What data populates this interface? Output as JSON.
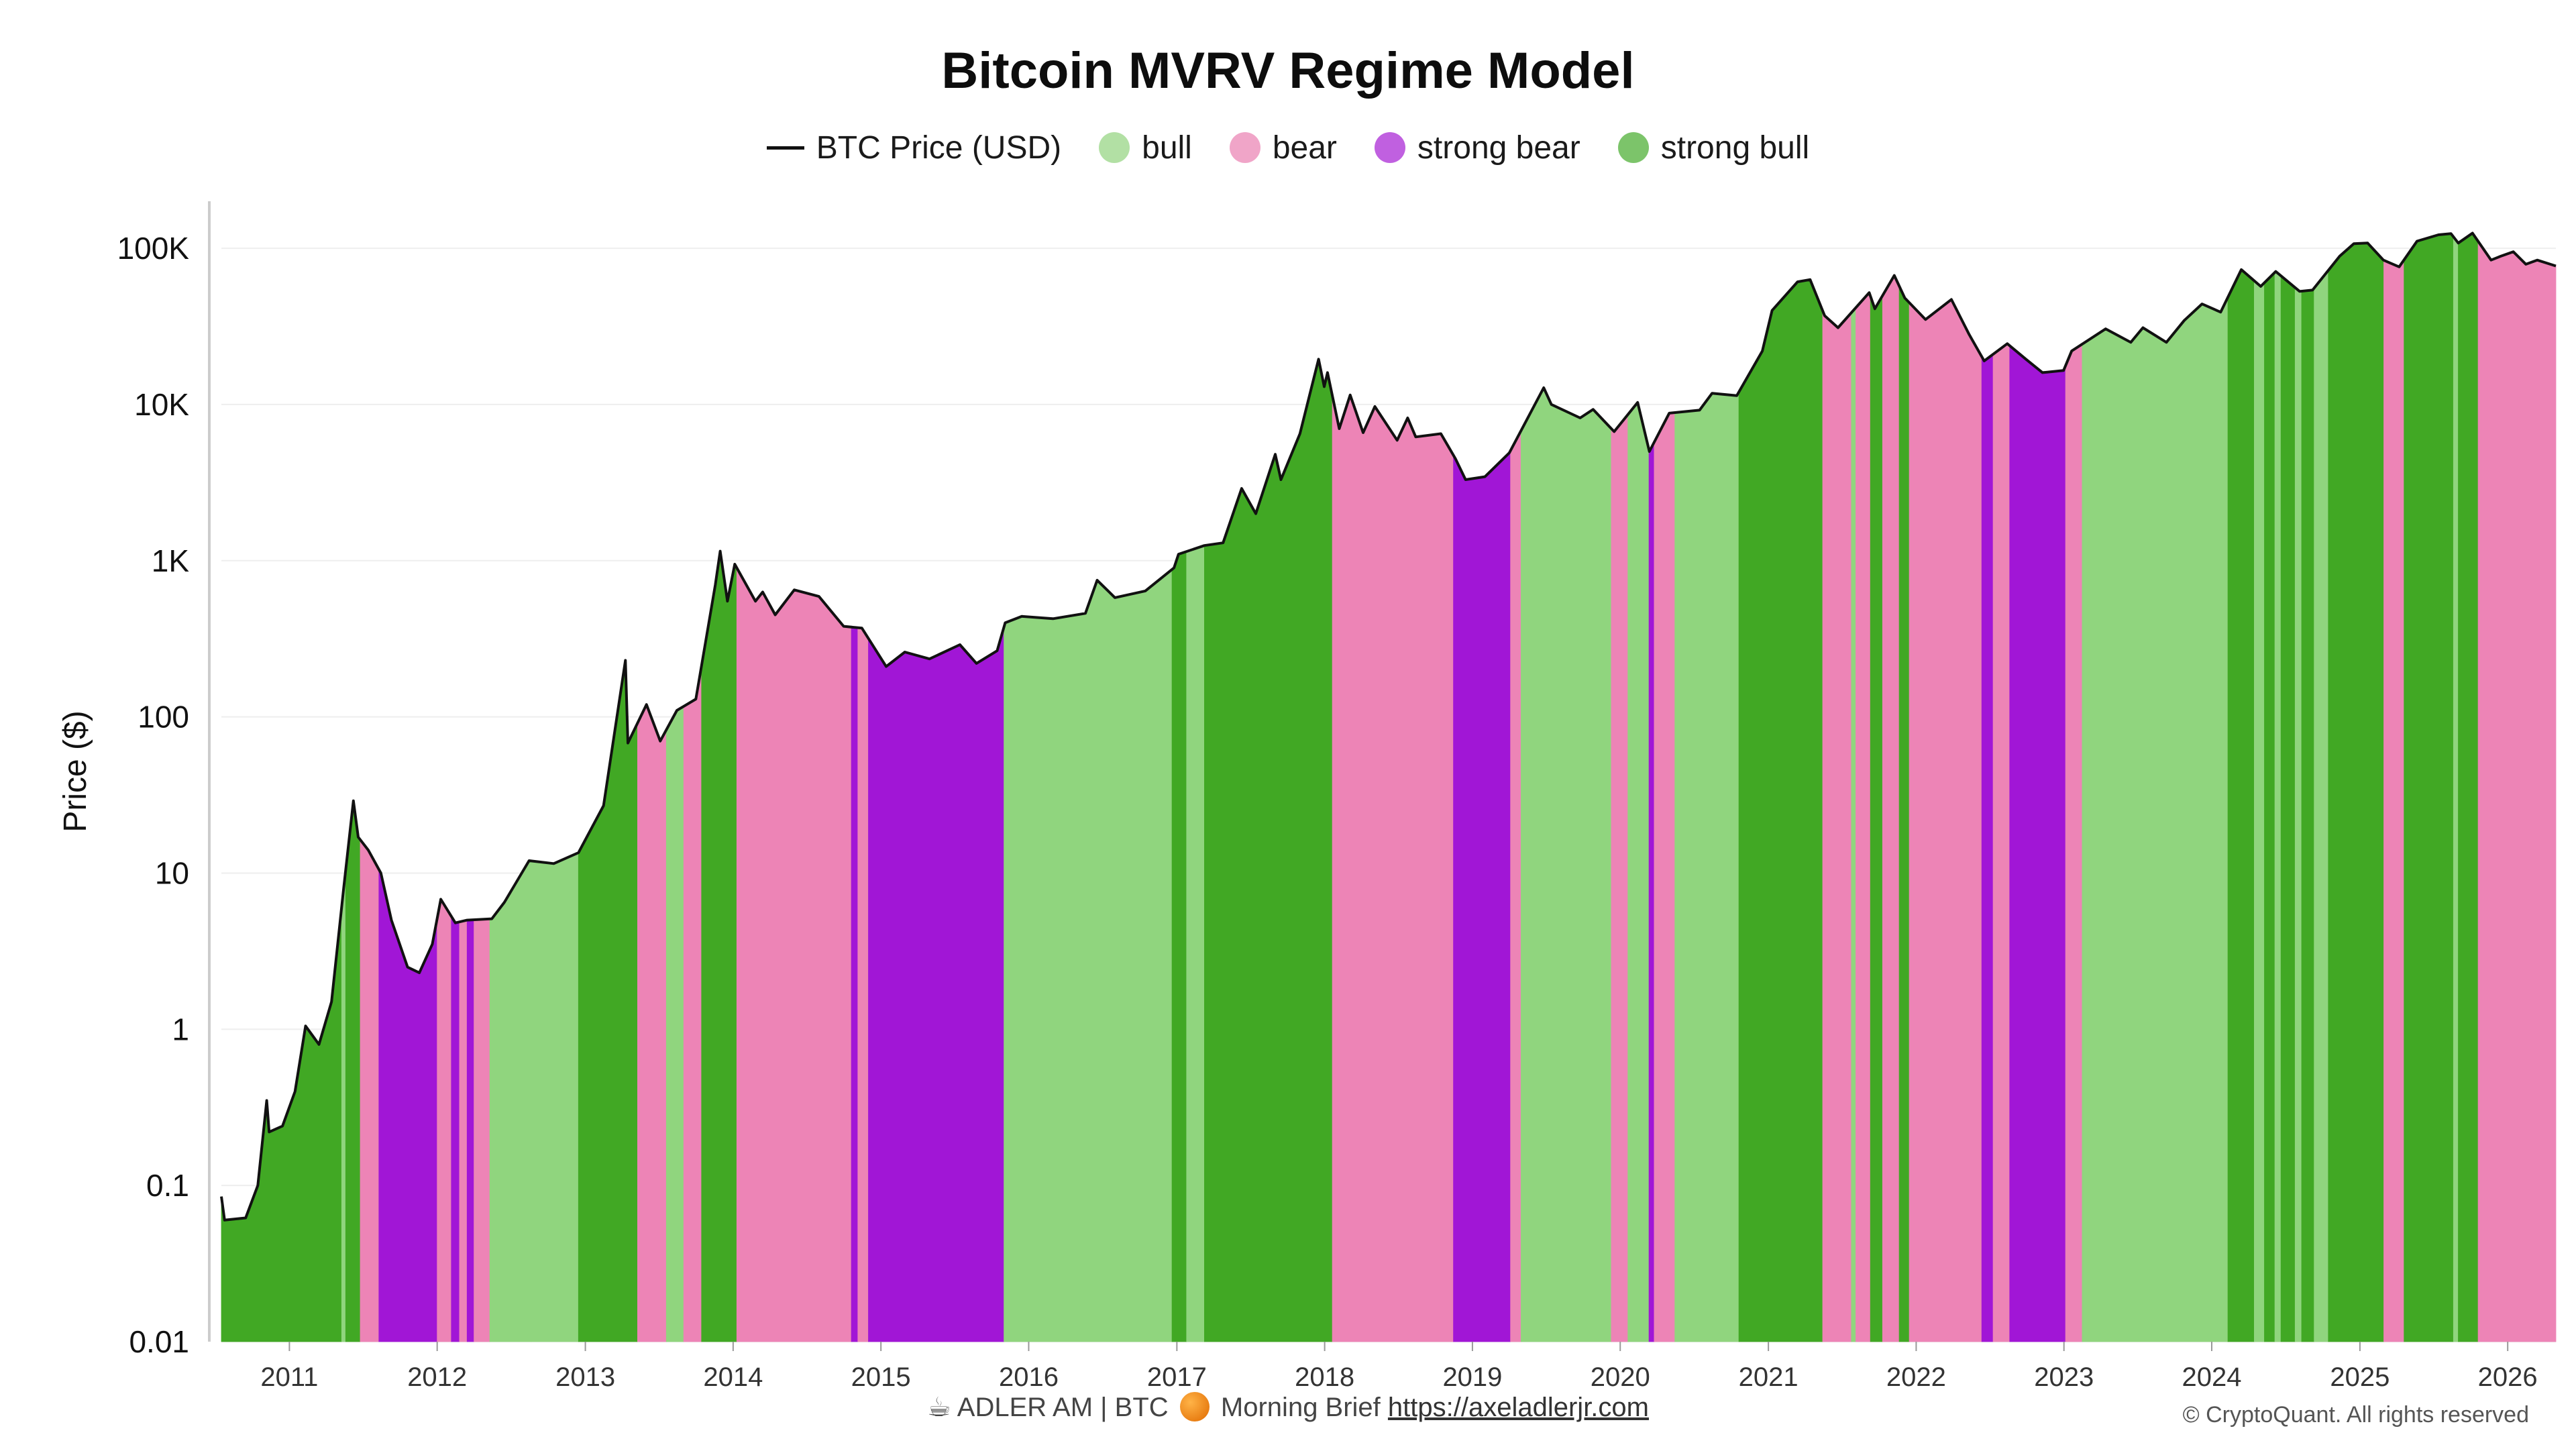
{
  "chart_data": {
    "type": "area",
    "title": "Bitcoin MVRV Regime Model",
    "ylabel": "Price ($)",
    "xlabel": "",
    "y_scale": "log",
    "ylim": [
      0.01,
      200000
    ],
    "xlim": [
      "2010-07-17",
      "2026-04-30"
    ],
    "grid": true,
    "legend_position": "top-center",
    "y_ticks": [
      {
        "value": 0.01,
        "label": "0.01"
      },
      {
        "value": 0.1,
        "label": "0.1"
      },
      {
        "value": 1,
        "label": "1"
      },
      {
        "value": 10,
        "label": "10"
      },
      {
        "value": 100,
        "label": "100"
      },
      {
        "value": 1000,
        "label": "1K"
      },
      {
        "value": 10000,
        "label": "10K"
      },
      {
        "value": 100000,
        "label": "100K"
      }
    ],
    "x_ticks": [
      "2011",
      "2012",
      "2013",
      "2014",
      "2015",
      "2016",
      "2017",
      "2018",
      "2019",
      "2020",
      "2021",
      "2022",
      "2023",
      "2024",
      "2025",
      "2026"
    ],
    "legend": [
      {
        "key": "price",
        "label": "BTC Price (USD)",
        "symbol": "line",
        "color": "#111111"
      },
      {
        "key": "bull",
        "label": "bull",
        "symbol": "dot",
        "color": "#b2e0a4"
      },
      {
        "key": "bear",
        "label": "bear",
        "symbol": "dot",
        "color": "#f0a5c8"
      },
      {
        "key": "strong_bear",
        "label": "strong bear",
        "symbol": "dot",
        "color": "#c060e0"
      },
      {
        "key": "strong_bull",
        "label": "strong bull",
        "symbol": "dot",
        "color": "#7cc46a"
      }
    ],
    "fill_colors": {
      "bull": "#90d57e",
      "bear": "#ed84b6",
      "strong_bear": "#a116d6",
      "strong_bull": "#41a824"
    },
    "price_series": [
      [
        "2010-07-17",
        0.085
      ],
      [
        "2010-07-25",
        0.06
      ],
      [
        "2010-09-15",
        0.062
      ],
      [
        "2010-10-15",
        0.1
      ],
      [
        "2010-11-06",
        0.35
      ],
      [
        "2010-11-12",
        0.22
      ],
      [
        "2010-12-15",
        0.24
      ],
      [
        "2011-01-15",
        0.4
      ],
      [
        "2011-02-10",
        1.05
      ],
      [
        "2011-03-15",
        0.8
      ],
      [
        "2011-04-15",
        1.5
      ],
      [
        "2011-05-15",
        8
      ],
      [
        "2011-06-08",
        29
      ],
      [
        "2011-06-20",
        17
      ],
      [
        "2011-07-15",
        14
      ],
      [
        "2011-08-15",
        10
      ],
      [
        "2011-09-10",
        5
      ],
      [
        "2011-10-20",
        2.5
      ],
      [
        "2011-11-18",
        2.3
      ],
      [
        "2011-12-20",
        3.5
      ],
      [
        "2012-01-10",
        6.8
      ],
      [
        "2012-02-15",
        4.8
      ],
      [
        "2012-03-15",
        5
      ],
      [
        "2012-05-15",
        5.1
      ],
      [
        "2012-06-15",
        6.5
      ],
      [
        "2012-08-15",
        12
      ],
      [
        "2012-10-15",
        11.5
      ],
      [
        "2012-12-15",
        13.5
      ],
      [
        "2013-02-15",
        27
      ],
      [
        "2013-04-10",
        230
      ],
      [
        "2013-04-16",
        68
      ],
      [
        "2013-06-01",
        120
      ],
      [
        "2013-07-05",
        70
      ],
      [
        "2013-08-15",
        110
      ],
      [
        "2013-10-01",
        130
      ],
      [
        "2013-11-18",
        700
      ],
      [
        "2013-11-30",
        1150
      ],
      [
        "2013-12-18",
        550
      ],
      [
        "2014-01-05",
        950
      ],
      [
        "2014-02-25",
        550
      ],
      [
        "2014-03-15",
        630
      ],
      [
        "2014-04-15",
        450
      ],
      [
        "2014-06-01",
        650
      ],
      [
        "2014-08-01",
        590
      ],
      [
        "2014-10-01",
        380
      ],
      [
        "2014-11-15",
        370
      ],
      [
        "2015-01-14",
        210
      ],
      [
        "2015-03-01",
        260
      ],
      [
        "2015-05-01",
        235
      ],
      [
        "2015-07-15",
        290
      ],
      [
        "2015-08-25",
        220
      ],
      [
        "2015-10-15",
        265
      ],
      [
        "2015-11-04",
        400
      ],
      [
        "2015-12-15",
        440
      ],
      [
        "2016-03-01",
        425
      ],
      [
        "2016-05-20",
        460
      ],
      [
        "2016-06-18",
        750
      ],
      [
        "2016-08-01",
        580
      ],
      [
        "2016-10-15",
        640
      ],
      [
        "2016-12-25",
        900
      ],
      [
        "2017-01-05",
        1100
      ],
      [
        "2017-03-10",
        1250
      ],
      [
        "2017-04-25",
        1300
      ],
      [
        "2017-06-10",
        2900
      ],
      [
        "2017-07-15",
        2000
      ],
      [
        "2017-09-01",
        4800
      ],
      [
        "2017-09-15",
        3300
      ],
      [
        "2017-11-01",
        6500
      ],
      [
        "2017-12-17",
        19500
      ],
      [
        "2017-12-31",
        13000
      ],
      [
        "2018-01-08",
        16000
      ],
      [
        "2018-02-06",
        7000
      ],
      [
        "2018-03-05",
        11500
      ],
      [
        "2018-04-06",
        6600
      ],
      [
        "2018-05-05",
        9700
      ],
      [
        "2018-06-29",
        5900
      ],
      [
        "2018-07-25",
        8200
      ],
      [
        "2018-08-14",
        6200
      ],
      [
        "2018-10-15",
        6500
      ],
      [
        "2018-11-20",
        4500
      ],
      [
        "2018-12-15",
        3300
      ],
      [
        "2019-02-01",
        3450
      ],
      [
        "2019-04-02",
        4900
      ],
      [
        "2019-06-26",
        12800
      ],
      [
        "2019-07-15",
        10000
      ],
      [
        "2019-09-24",
        8200
      ],
      [
        "2019-10-26",
        9300
      ],
      [
        "2019-12-17",
        6700
      ],
      [
        "2020-02-13",
        10300
      ],
      [
        "2020-03-13",
        5000
      ],
      [
        "2020-05-01",
        8800
      ],
      [
        "2020-07-15",
        9200
      ],
      [
        "2020-08-15",
        11800
      ],
      [
        "2020-10-15",
        11400
      ],
      [
        "2020-12-17",
        22000
      ],
      [
        "2021-01-10",
        40000
      ],
      [
        "2021-03-14",
        61000
      ],
      [
        "2021-04-14",
        63000
      ],
      [
        "2021-05-20",
        37000
      ],
      [
        "2021-06-22",
        31000
      ],
      [
        "2021-09-07",
        52000
      ],
      [
        "2021-09-21",
        41000
      ],
      [
        "2021-11-08",
        67000
      ],
      [
        "2021-12-04",
        48000
      ],
      [
        "2022-01-24",
        35000
      ],
      [
        "2022-03-29",
        47000
      ],
      [
        "2022-05-12",
        28000
      ],
      [
        "2022-06-18",
        19000
      ],
      [
        "2022-08-14",
        24500
      ],
      [
        "2022-09-30",
        19400
      ],
      [
        "2022-11-09",
        16000
      ],
      [
        "2022-12-31",
        16500
      ],
      [
        "2023-01-20",
        22000
      ],
      [
        "2023-04-14",
        30500
      ],
      [
        "2023-06-15",
        25000
      ],
      [
        "2023-07-15",
        31000
      ],
      [
        "2023-09-11",
        25000
      ],
      [
        "2023-10-25",
        34500
      ],
      [
        "2023-12-08",
        44000
      ],
      [
        "2024-01-23",
        39000
      ],
      [
        "2024-03-14",
        73000
      ],
      [
        "2024-05-01",
        57000
      ],
      [
        "2024-06-07",
        71000
      ],
      [
        "2024-08-05",
        53000
      ],
      [
        "2024-09-06",
        54000
      ],
      [
        "2024-11-12",
        89000
      ],
      [
        "2024-12-17",
        107000
      ],
      [
        "2025-01-20",
        108000
      ],
      [
        "2025-02-28",
        84000
      ],
      [
        "2025-04-08",
        76000
      ],
      [
        "2025-05-22",
        111000
      ],
      [
        "2025-07-14",
        122000
      ],
      [
        "2025-08-14",
        124000
      ],
      [
        "2025-09-01",
        108000
      ],
      [
        "2025-10-06",
        125000
      ],
      [
        "2025-11-21",
        84000
      ],
      [
        "2025-12-15",
        89000
      ],
      [
        "2026-01-15",
        95000
      ],
      [
        "2026-02-15",
        79000
      ],
      [
        "2026-03-15",
        84000
      ],
      [
        "2026-04-30",
        77000
      ]
    ],
    "regimes": [
      {
        "start": "2010-07-17",
        "end": "2011-05-10",
        "regime": "strong_bull"
      },
      {
        "start": "2011-05-10",
        "end": "2011-05-20",
        "regime": "bull"
      },
      {
        "start": "2011-05-20",
        "end": "2011-06-25",
        "regime": "strong_bull"
      },
      {
        "start": "2011-06-25",
        "end": "2011-08-10",
        "regime": "bear"
      },
      {
        "start": "2011-08-10",
        "end": "2012-01-01",
        "regime": "strong_bear"
      },
      {
        "start": "2012-01-01",
        "end": "2012-02-05",
        "regime": "bear"
      },
      {
        "start": "2012-02-05",
        "end": "2012-02-25",
        "regime": "strong_bear"
      },
      {
        "start": "2012-02-25",
        "end": "2012-03-15",
        "regime": "bear"
      },
      {
        "start": "2012-03-15",
        "end": "2012-04-01",
        "regime": "strong_bear"
      },
      {
        "start": "2012-04-01",
        "end": "2012-05-10",
        "regime": "bear"
      },
      {
        "start": "2012-05-10",
        "end": "2012-08-20",
        "regime": "bull"
      },
      {
        "start": "2012-08-20",
        "end": "2012-12-15",
        "regime": "bull"
      },
      {
        "start": "2012-12-15",
        "end": "2013-05-10",
        "regime": "strong_bull"
      },
      {
        "start": "2013-05-10",
        "end": "2013-07-20",
        "regime": "bear"
      },
      {
        "start": "2013-07-20",
        "end": "2013-09-01",
        "regime": "bull"
      },
      {
        "start": "2013-09-01",
        "end": "2013-10-15",
        "regime": "bear"
      },
      {
        "start": "2013-10-15",
        "end": "2014-01-10",
        "regime": "strong_bull"
      },
      {
        "start": "2014-01-10",
        "end": "2014-10-20",
        "regime": "bear"
      },
      {
        "start": "2014-10-20",
        "end": "2014-11-05",
        "regime": "strong_bear"
      },
      {
        "start": "2014-11-05",
        "end": "2014-12-01",
        "regime": "bear"
      },
      {
        "start": "2014-12-01",
        "end": "2015-11-01",
        "regime": "strong_bear"
      },
      {
        "start": "2015-11-01",
        "end": "2016-12-20",
        "regime": "bull"
      },
      {
        "start": "2016-12-20",
        "end": "2017-01-25",
        "regime": "strong_bull"
      },
      {
        "start": "2017-01-25",
        "end": "2017-03-10",
        "regime": "bull"
      },
      {
        "start": "2017-03-10",
        "end": "2018-01-20",
        "regime": "strong_bull"
      },
      {
        "start": "2018-01-20",
        "end": "2018-11-15",
        "regime": "bear"
      },
      {
        "start": "2018-11-15",
        "end": "2019-04-05",
        "regime": "strong_bear"
      },
      {
        "start": "2019-04-05",
        "end": "2019-05-01",
        "regime": "bear"
      },
      {
        "start": "2019-05-01",
        "end": "2019-12-10",
        "regime": "bull"
      },
      {
        "start": "2019-12-10",
        "end": "2020-01-20",
        "regime": "bear"
      },
      {
        "start": "2020-01-20",
        "end": "2020-03-12",
        "regime": "bull"
      },
      {
        "start": "2020-03-12",
        "end": "2020-03-25",
        "regime": "strong_bear"
      },
      {
        "start": "2020-03-25",
        "end": "2020-05-15",
        "regime": "bear"
      },
      {
        "start": "2020-05-15",
        "end": "2020-10-20",
        "regime": "bull"
      },
      {
        "start": "2020-10-20",
        "end": "2021-05-15",
        "regime": "strong_bull"
      },
      {
        "start": "2021-05-15",
        "end": "2021-07-25",
        "regime": "bear"
      },
      {
        "start": "2021-07-25",
        "end": "2021-08-05",
        "regime": "bull"
      },
      {
        "start": "2021-08-05",
        "end": "2021-09-10",
        "regime": "bear"
      },
      {
        "start": "2021-09-10",
        "end": "2021-10-10",
        "regime": "strong_bull"
      },
      {
        "start": "2021-10-10",
        "end": "2021-11-20",
        "regime": "bear"
      },
      {
        "start": "2021-11-20",
        "end": "2021-12-15",
        "regime": "strong_bull"
      },
      {
        "start": "2021-12-15",
        "end": "2022-06-12",
        "regime": "bear"
      },
      {
        "start": "2022-06-12",
        "end": "2022-07-10",
        "regime": "strong_bear"
      },
      {
        "start": "2022-07-10",
        "end": "2022-08-20",
        "regime": "bear"
      },
      {
        "start": "2022-08-20",
        "end": "2023-01-05",
        "regime": "strong_bear"
      },
      {
        "start": "2023-01-05",
        "end": "2023-02-15",
        "regime": "bear"
      },
      {
        "start": "2023-02-15",
        "end": "2024-02-10",
        "regime": "bull"
      },
      {
        "start": "2024-02-10",
        "end": "2024-04-15",
        "regime": "strong_bull"
      },
      {
        "start": "2024-04-15",
        "end": "2024-05-10",
        "regime": "bull"
      },
      {
        "start": "2024-05-10",
        "end": "2024-06-05",
        "regime": "strong_bull"
      },
      {
        "start": "2024-06-05",
        "end": "2024-06-20",
        "regime": "bull"
      },
      {
        "start": "2024-06-20",
        "end": "2024-07-25",
        "regime": "strong_bull"
      },
      {
        "start": "2024-07-25",
        "end": "2024-08-10",
        "regime": "bull"
      },
      {
        "start": "2024-08-10",
        "end": "2024-09-10",
        "regime": "strong_bull"
      },
      {
        "start": "2024-09-10",
        "end": "2024-10-15",
        "regime": "bull"
      },
      {
        "start": "2024-10-15",
        "end": "2025-03-01",
        "regime": "strong_bull"
      },
      {
        "start": "2025-03-01",
        "end": "2025-04-20",
        "regime": "bear"
      },
      {
        "start": "2025-04-20",
        "end": "2025-08-20",
        "regime": "strong_bull"
      },
      {
        "start": "2025-08-20",
        "end": "2025-09-01",
        "regime": "bull"
      },
      {
        "start": "2025-09-01",
        "end": "2025-10-20",
        "regime": "strong_bull"
      },
      {
        "start": "2025-10-20",
        "end": "2026-04-30",
        "regime": "bear"
      }
    ]
  },
  "footer": {
    "brief_prefix": "ADLER AM | BTC",
    "brief_suffix": "Morning Brief",
    "brief_link": "https://axeladlerjr.com",
    "copyright": "© CryptoQuant. All rights reserved"
  }
}
